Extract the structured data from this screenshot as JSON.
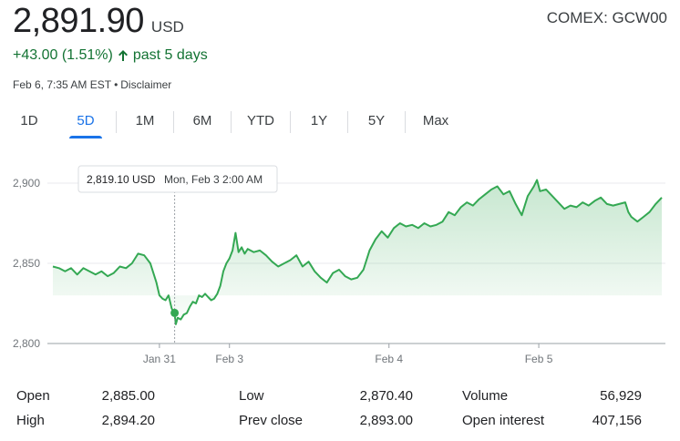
{
  "header": {
    "price": "2,891.90",
    "currency": "USD",
    "ticker": "COMEX: GCW00",
    "change": "+43.00 (1.51%)",
    "period": "past 5 days",
    "timestamp": "Feb 6, 7:35 AM EST",
    "disclaimer": "Disclaimer",
    "colors": {
      "positive": "#137333",
      "accent": "#1a73e8"
    }
  },
  "tabs": [
    {
      "label": "1D",
      "active": false
    },
    {
      "label": "5D",
      "active": true
    },
    {
      "label": "1M",
      "active": false
    },
    {
      "label": "6M",
      "active": false
    },
    {
      "label": "YTD",
      "active": false
    },
    {
      "label": "1Y",
      "active": false
    },
    {
      "label": "5Y",
      "active": false
    },
    {
      "label": "Max",
      "active": false
    }
  ],
  "tooltip": {
    "price": "2,819.10 USD",
    "time": "Mon, Feb 3 2:00 AM"
  },
  "chart_data": {
    "type": "area",
    "y_ticks": [
      "2,900",
      "2,850",
      "2,800"
    ],
    "y_tick_values": [
      2900,
      2850,
      2800
    ],
    "ylim": [
      2800,
      2910
    ],
    "x_ticks": [
      {
        "label": "Jan 31",
        "x": 0.175
      },
      {
        "label": "Feb 3",
        "x": 0.29
      },
      {
        "label": "Feb 4",
        "x": 0.552
      },
      {
        "label": "Feb 5",
        "x": 0.798
      }
    ],
    "hover_point": {
      "x": 0.2,
      "y": 2819.1
    },
    "line_color": "#34a853",
    "series": [
      {
        "points": [
          [
            0.0,
            2848
          ],
          [
            0.01,
            2847
          ],
          [
            0.02,
            2845
          ],
          [
            0.03,
            2847
          ],
          [
            0.04,
            2843
          ],
          [
            0.05,
            2847
          ],
          [
            0.06,
            2845
          ],
          [
            0.07,
            2843
          ],
          [
            0.08,
            2845
          ],
          [
            0.09,
            2842
          ],
          [
            0.1,
            2844
          ],
          [
            0.11,
            2848
          ],
          [
            0.12,
            2847
          ],
          [
            0.13,
            2850
          ],
          [
            0.14,
            2856
          ],
          [
            0.15,
            2855
          ],
          [
            0.16,
            2850
          ],
          [
            0.17,
            2838
          ],
          [
            0.175,
            2830
          ],
          [
            0.18,
            2828
          ],
          [
            0.185,
            2827
          ],
          [
            0.19,
            2830
          ],
          [
            0.195,
            2822
          ],
          [
            0.2,
            2818
          ],
          [
            0.202,
            2812
          ],
          [
            0.205,
            2816
          ],
          [
            0.21,
            2815
          ],
          [
            0.215,
            2818
          ],
          [
            0.22,
            2819
          ],
          [
            0.225,
            2823
          ],
          [
            0.23,
            2826
          ],
          [
            0.235,
            2825
          ],
          [
            0.24,
            2830
          ],
          [
            0.245,
            2829
          ],
          [
            0.25,
            2831
          ],
          [
            0.255,
            2829
          ],
          [
            0.26,
            2827
          ],
          [
            0.265,
            2828
          ],
          [
            0.27,
            2831
          ],
          [
            0.275,
            2836
          ],
          [
            0.28,
            2845
          ],
          [
            0.285,
            2850
          ],
          [
            0.29,
            2853
          ],
          [
            0.295,
            2858
          ],
          [
            0.3,
            2869
          ],
          [
            0.305,
            2857
          ],
          [
            0.31,
            2860
          ],
          [
            0.315,
            2856
          ],
          [
            0.32,
            2859
          ],
          [
            0.33,
            2857
          ],
          [
            0.34,
            2858
          ],
          [
            0.35,
            2855
          ],
          [
            0.36,
            2851
          ],
          [
            0.37,
            2848
          ],
          [
            0.38,
            2850
          ],
          [
            0.39,
            2852
          ],
          [
            0.4,
            2855
          ],
          [
            0.41,
            2848
          ],
          [
            0.42,
            2851
          ],
          [
            0.43,
            2845
          ],
          [
            0.44,
            2841
          ],
          [
            0.45,
            2838
          ],
          [
            0.46,
            2844
          ],
          [
            0.47,
            2846
          ],
          [
            0.48,
            2842
          ],
          [
            0.49,
            2840
          ],
          [
            0.5,
            2841
          ],
          [
            0.51,
            2846
          ],
          [
            0.52,
            2858
          ],
          [
            0.53,
            2865
          ],
          [
            0.54,
            2870
          ],
          [
            0.55,
            2866
          ],
          [
            0.56,
            2872
          ],
          [
            0.57,
            2875
          ],
          [
            0.58,
            2873
          ],
          [
            0.59,
            2874
          ],
          [
            0.6,
            2872
          ],
          [
            0.61,
            2875
          ],
          [
            0.62,
            2873
          ],
          [
            0.63,
            2874
          ],
          [
            0.64,
            2876
          ],
          [
            0.65,
            2882
          ],
          [
            0.66,
            2880
          ],
          [
            0.67,
            2885
          ],
          [
            0.68,
            2888
          ],
          [
            0.69,
            2886
          ],
          [
            0.7,
            2890
          ],
          [
            0.71,
            2893
          ],
          [
            0.72,
            2896
          ],
          [
            0.73,
            2898
          ],
          [
            0.74,
            2893
          ],
          [
            0.75,
            2895
          ],
          [
            0.76,
            2887
          ],
          [
            0.77,
            2880
          ],
          [
            0.78,
            2892
          ],
          [
            0.79,
            2898
          ],
          [
            0.795,
            2902
          ],
          [
            0.8,
            2895
          ],
          [
            0.81,
            2896
          ],
          [
            0.82,
            2892
          ],
          [
            0.83,
            2888
          ],
          [
            0.84,
            2884
          ],
          [
            0.85,
            2886
          ],
          [
            0.86,
            2885
          ],
          [
            0.87,
            2888
          ],
          [
            0.88,
            2886
          ],
          [
            0.89,
            2889
          ],
          [
            0.9,
            2891
          ],
          [
            0.91,
            2887
          ],
          [
            0.92,
            2886
          ],
          [
            0.93,
            2887
          ],
          [
            0.94,
            2888
          ],
          [
            0.945,
            2882
          ],
          [
            0.95,
            2879
          ],
          [
            0.96,
            2876
          ],
          [
            0.97,
            2879
          ],
          [
            0.98,
            2882
          ],
          [
            0.99,
            2887
          ],
          [
            1.0,
            2891
          ]
        ]
      }
    ]
  },
  "stats": [
    {
      "label": "Open",
      "value": "2,885.00"
    },
    {
      "label": "High",
      "value": "2,894.20"
    },
    {
      "label": "Low",
      "value": "2,870.40"
    },
    {
      "label": "Prev close",
      "value": "2,893.00"
    },
    {
      "label": "Volume",
      "value": "56,929"
    },
    {
      "label": "Open interest",
      "value": "407,156"
    }
  ]
}
